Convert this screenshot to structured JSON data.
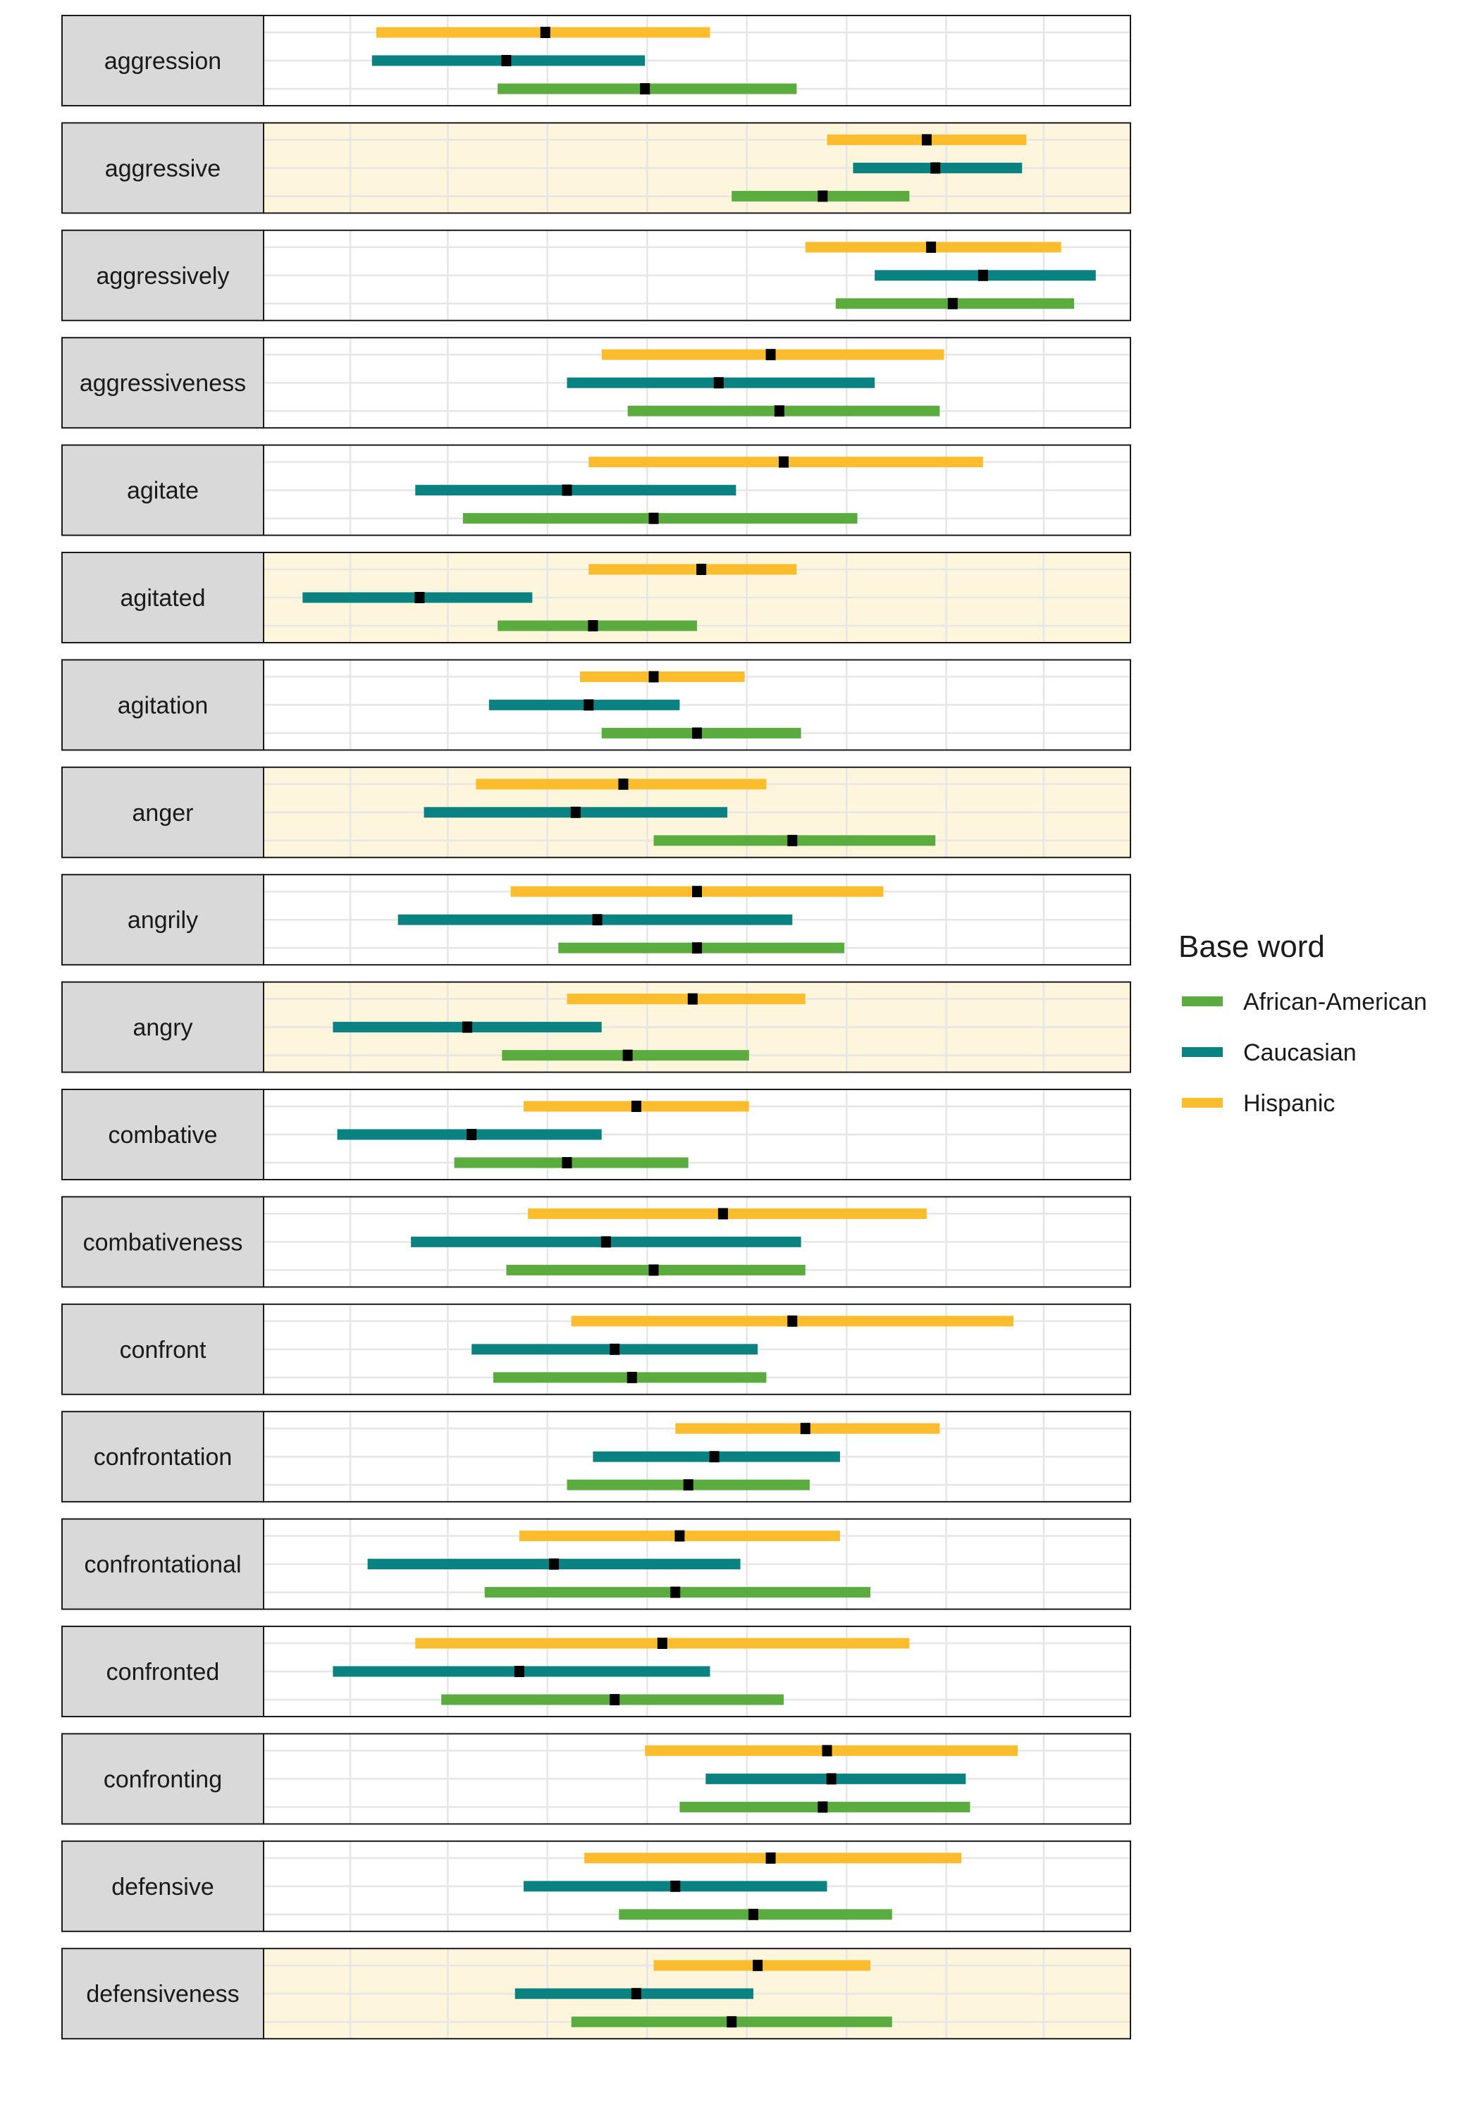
{
  "chart_data": {
    "type": "interval",
    "note_units": "relative position on shared (unlabeled) horizontal axis",
    "xlim": [
      0,
      100
    ],
    "colors": {
      "African-American": "#5aac3e",
      "Caucasian": "#0b8282",
      "Hispanic": "#fbbd2e",
      "median_marker": "#000000",
      "highlight_panel": "#fdf6dc",
      "strip_background": "#d9d9d9"
    },
    "legend": {
      "title": "Base word",
      "placement": "right",
      "items": [
        {
          "name": "African-American",
          "color": "#5aac3e"
        },
        {
          "name": "Caucasian",
          "color": "#0b8282"
        },
        {
          "name": "Hispanic",
          "color": "#fbbd2e"
        }
      ]
    },
    "panels": [
      {
        "label": "aggression",
        "highlight": false,
        "Hispanic": [
          13,
          32.5,
          51.5
        ],
        "Caucasian": [
          12.5,
          28,
          44
        ],
        "African-American": [
          27,
          44,
          61.5
        ]
      },
      {
        "label": "aggressive",
        "highlight": true,
        "Hispanic": [
          65,
          76.5,
          88
        ],
        "Caucasian": [
          68,
          77.5,
          87.5
        ],
        "African-American": [
          54,
          64.5,
          74.5
        ]
      },
      {
        "label": "aggressively",
        "highlight": false,
        "Hispanic": [
          62.5,
          77,
          92
        ],
        "Caucasian": [
          70.5,
          83,
          96
        ],
        "African-American": [
          66,
          79.5,
          93.5
        ]
      },
      {
        "label": "aggressiveness",
        "highlight": false,
        "Hispanic": [
          39,
          58.5,
          78.5
        ],
        "Caucasian": [
          35,
          52.5,
          70.5
        ],
        "African-American": [
          42,
          59.5,
          78
        ]
      },
      {
        "label": "agitate",
        "highlight": false,
        "Hispanic": [
          37.5,
          60,
          83
        ],
        "Caucasian": [
          17.5,
          35,
          54.5
        ],
        "African-American": [
          23,
          45,
          68.5
        ]
      },
      {
        "label": "agitated",
        "highlight": true,
        "Hispanic": [
          37.5,
          50.5,
          61.5
        ],
        "Caucasian": [
          4.5,
          18,
          31
        ],
        "African-American": [
          27,
          38,
          50
        ]
      },
      {
        "label": "agitation",
        "highlight": false,
        "Hispanic": [
          36.5,
          45,
          55.5
        ],
        "Caucasian": [
          26,
          37.5,
          48
        ],
        "African-American": [
          39,
          50,
          62
        ]
      },
      {
        "label": "anger",
        "highlight": true,
        "Hispanic": [
          24.5,
          41.5,
          58
        ],
        "Caucasian": [
          18.5,
          36,
          53.5
        ],
        "African-American": [
          45,
          61,
          77.5
        ]
      },
      {
        "label": "angrily",
        "highlight": false,
        "Hispanic": [
          28.5,
          50,
          71.5
        ],
        "Caucasian": [
          15.5,
          38.5,
          61
        ],
        "African-American": [
          34,
          50,
          67
        ]
      },
      {
        "label": "angry",
        "highlight": true,
        "Hispanic": [
          35,
          49.5,
          62.5
        ],
        "Caucasian": [
          8,
          23.5,
          39
        ],
        "African-American": [
          27.5,
          42,
          56
        ]
      },
      {
        "label": "combative",
        "highlight": false,
        "Hispanic": [
          30,
          43,
          56
        ],
        "Caucasian": [
          8.5,
          24,
          39
        ],
        "African-American": [
          22,
          35,
          49
        ]
      },
      {
        "label": "combativeness",
        "highlight": false,
        "Hispanic": [
          30.5,
          53,
          76.5
        ],
        "Caucasian": [
          17,
          39.5,
          62
        ],
        "African-American": [
          28,
          45,
          62.5
        ]
      },
      {
        "label": "confront",
        "highlight": false,
        "Hispanic": [
          35.5,
          61,
          86.5
        ],
        "Caucasian": [
          24,
          40.5,
          57
        ],
        "African-American": [
          26.5,
          42.5,
          58
        ]
      },
      {
        "label": "confrontation",
        "highlight": false,
        "Hispanic": [
          47.5,
          62.5,
          78
        ],
        "Caucasian": [
          38,
          52,
          66.5
        ],
        "African-American": [
          35,
          49,
          63
        ]
      },
      {
        "label": "confrontational",
        "highlight": false,
        "Hispanic": [
          29.5,
          48,
          66.5
        ],
        "Caucasian": [
          12,
          33.5,
          55
        ],
        "African-American": [
          25.5,
          47.5,
          70
        ]
      },
      {
        "label": "confronted",
        "highlight": false,
        "Hispanic": [
          17.5,
          46,
          74.5
        ],
        "Caucasian": [
          8,
          29.5,
          51.5
        ],
        "African-American": [
          20.5,
          40.5,
          60
        ]
      },
      {
        "label": "confronting",
        "highlight": false,
        "Hispanic": [
          44,
          65,
          87
        ],
        "Caucasian": [
          51,
          65.5,
          81
        ],
        "African-American": [
          48,
          64.5,
          81.5
        ]
      },
      {
        "label": "defensive",
        "highlight": false,
        "Hispanic": [
          37,
          58.5,
          80.5
        ],
        "Caucasian": [
          30,
          47.5,
          65
        ],
        "African-American": [
          41,
          56.5,
          72.5
        ]
      },
      {
        "label": "defensiveness",
        "highlight": true,
        "Hispanic": [
          45,
          57,
          70
        ],
        "Caucasian": [
          29,
          43,
          56.5
        ],
        "African-American": [
          35.5,
          54,
          72.5
        ]
      }
    ]
  }
}
